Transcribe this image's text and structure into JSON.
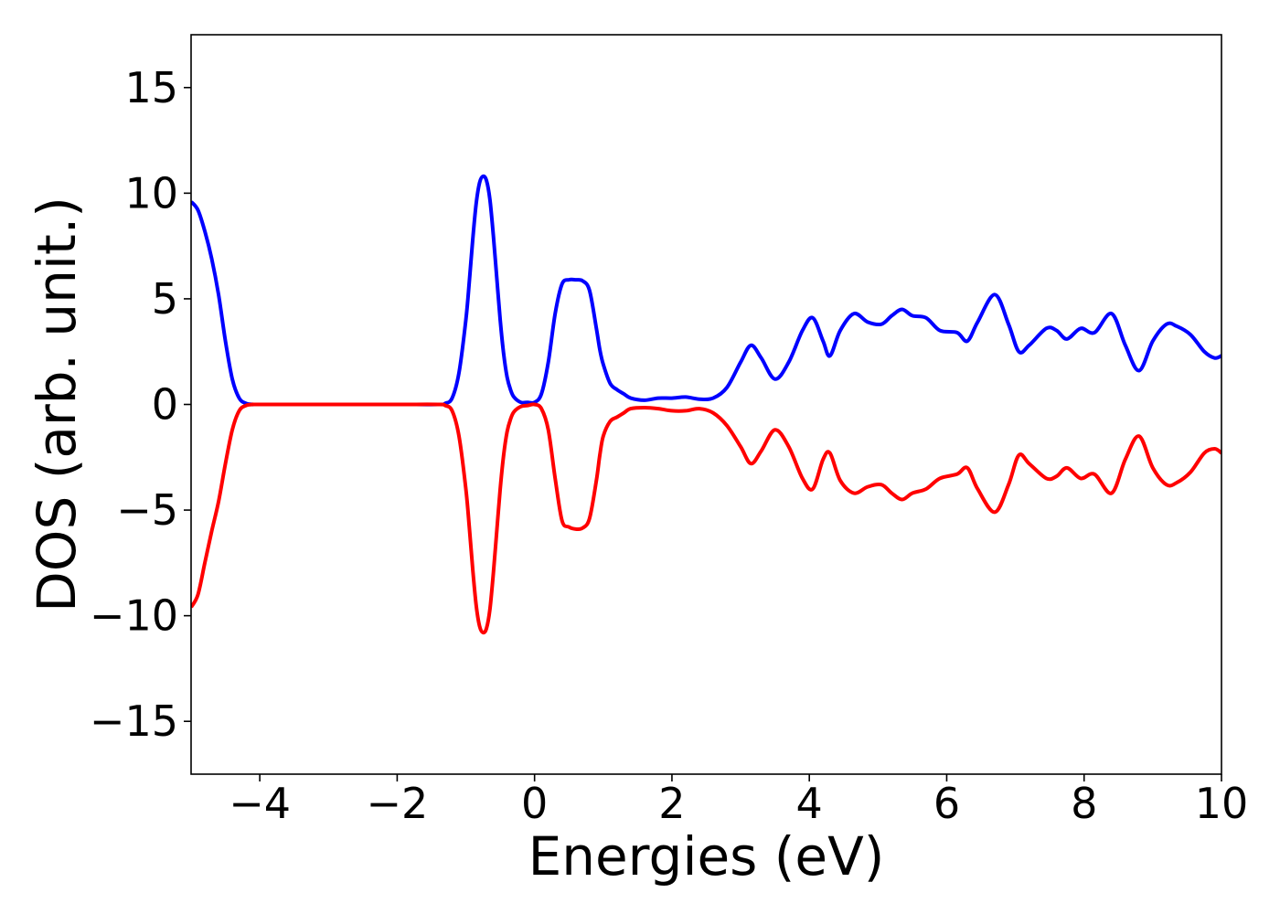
{
  "chart_data": {
    "type": "line",
    "title": "",
    "xlabel": "Energies (eV)",
    "ylabel": "DOS (arb. unit.)",
    "xlim": [
      -5,
      10
    ],
    "ylim": [
      -17.5,
      17.5
    ],
    "xticks": [
      -4,
      -2,
      0,
      2,
      4,
      6,
      8,
      10
    ],
    "xtick_labels": [
      "−4",
      "−2",
      "0",
      "2",
      "4",
      "6",
      "8",
      "10"
    ],
    "yticks": [
      15,
      10,
      5,
      0,
      -5,
      -10,
      -15
    ],
    "ytick_labels": [
      "15",
      "10",
      "5",
      "0",
      "−5",
      "−10",
      "−15"
    ],
    "grid": false,
    "legend": "none",
    "series": [
      {
        "color": "#0000ff",
        "x": [
          -5.0,
          -4.9,
          -4.8,
          -4.7,
          -4.6,
          -4.5,
          -4.4,
          -4.3,
          -4.2,
          -4.1,
          -4.0,
          -3.0,
          -2.0,
          -1.4,
          -1.3,
          -1.2,
          -1.1,
          -1.0,
          -0.95,
          -0.9,
          -0.85,
          -0.8,
          -0.75,
          -0.7,
          -0.65,
          -0.6,
          -0.55,
          -0.5,
          -0.45,
          -0.4,
          -0.35,
          -0.3,
          -0.2,
          -0.1,
          0.0,
          0.1,
          0.2,
          0.3,
          0.4,
          0.5,
          0.6,
          0.7,
          0.8,
          0.9,
          0.95,
          1.0,
          1.1,
          1.2,
          1.3,
          1.4,
          1.6,
          1.8,
          2.0,
          2.2,
          2.4,
          2.6,
          2.8,
          3.0,
          3.15,
          3.3,
          3.5,
          3.7,
          3.9,
          4.05,
          4.2,
          4.3,
          4.45,
          4.65,
          4.85,
          5.05,
          5.2,
          5.35,
          5.5,
          5.7,
          5.9,
          6.15,
          6.3,
          6.45,
          6.7,
          6.9,
          7.05,
          7.2,
          7.45,
          7.6,
          7.75,
          7.95,
          8.15,
          8.4,
          8.6,
          8.8,
          9.0,
          9.2,
          9.35,
          9.55,
          9.75,
          9.9,
          10.0
        ],
        "y": [
          9.6,
          9.2,
          8.2,
          6.9,
          5.2,
          3.0,
          1.2,
          0.3,
          0.05,
          0.0,
          0.0,
          0.0,
          0.0,
          0.0,
          0.05,
          0.3,
          1.5,
          4.0,
          5.8,
          7.8,
          9.5,
          10.5,
          10.8,
          10.6,
          9.7,
          8.0,
          6.0,
          4.0,
          2.4,
          1.3,
          0.7,
          0.35,
          0.1,
          0.1,
          0.1,
          0.5,
          2.0,
          4.3,
          5.7,
          5.9,
          5.9,
          5.85,
          5.4,
          3.6,
          2.6,
          1.9,
          1.0,
          0.7,
          0.5,
          0.3,
          0.2,
          0.3,
          0.3,
          0.35,
          0.25,
          0.3,
          0.8,
          2.0,
          2.8,
          2.2,
          1.2,
          2.0,
          3.5,
          4.1,
          3.0,
          2.3,
          3.5,
          4.3,
          3.9,
          3.8,
          4.2,
          4.5,
          4.2,
          4.1,
          3.5,
          3.4,
          3.0,
          3.9,
          5.2,
          3.8,
          2.5,
          2.8,
          3.6,
          3.5,
          3.1,
          3.6,
          3.4,
          4.3,
          2.8,
          1.6,
          3.0,
          3.8,
          3.7,
          3.3,
          2.5,
          2.2,
          2.3
        ]
      },
      {
        "color": "#ff0000",
        "x": [
          -5.0,
          -4.9,
          -4.8,
          -4.7,
          -4.6,
          -4.5,
          -4.4,
          -4.3,
          -4.2,
          -4.1,
          -4.0,
          -3.0,
          -2.0,
          -1.4,
          -1.3,
          -1.2,
          -1.1,
          -1.0,
          -0.95,
          -0.9,
          -0.85,
          -0.8,
          -0.75,
          -0.7,
          -0.65,
          -0.6,
          -0.55,
          -0.5,
          -0.45,
          -0.4,
          -0.35,
          -0.3,
          -0.2,
          -0.1,
          0.0,
          0.1,
          0.2,
          0.3,
          0.4,
          0.5,
          0.6,
          0.7,
          0.8,
          0.9,
          0.95,
          1.0,
          1.1,
          1.2,
          1.3,
          1.4,
          1.6,
          1.8,
          2.0,
          2.2,
          2.4,
          2.6,
          2.8,
          3.0,
          3.15,
          3.3,
          3.5,
          3.7,
          3.9,
          4.05,
          4.2,
          4.3,
          4.45,
          4.65,
          4.85,
          5.05,
          5.2,
          5.35,
          5.5,
          5.7,
          5.9,
          6.15,
          6.3,
          6.45,
          6.7,
          6.9,
          7.05,
          7.2,
          7.45,
          7.6,
          7.75,
          7.95,
          8.15,
          8.4,
          8.6,
          8.8,
          9.0,
          9.2,
          9.35,
          9.55,
          9.75,
          9.9,
          10.0
        ],
        "y": [
          -9.6,
          -9.0,
          -7.5,
          -6.0,
          -4.6,
          -2.8,
          -1.2,
          -0.3,
          -0.05,
          0.0,
          0.0,
          0.0,
          0.0,
          0.0,
          -0.05,
          -0.3,
          -1.5,
          -4.0,
          -5.8,
          -7.8,
          -9.5,
          -10.5,
          -10.8,
          -10.6,
          -9.7,
          -8.0,
          -6.0,
          -4.0,
          -2.4,
          -1.3,
          -0.7,
          -0.35,
          -0.1,
          -0.05,
          0.0,
          -0.2,
          -1.2,
          -3.5,
          -5.5,
          -5.8,
          -5.9,
          -5.85,
          -5.4,
          -3.6,
          -2.4,
          -1.5,
          -0.8,
          -0.6,
          -0.4,
          -0.2,
          -0.15,
          -0.2,
          -0.3,
          -0.3,
          -0.2,
          -0.4,
          -1.0,
          -2.0,
          -2.8,
          -2.2,
          -1.2,
          -2.0,
          -3.5,
          -4.0,
          -2.6,
          -2.3,
          -3.6,
          -4.2,
          -3.9,
          -3.8,
          -4.2,
          -4.5,
          -4.2,
          -4.0,
          -3.5,
          -3.3,
          -3.0,
          -4.0,
          -5.1,
          -3.8,
          -2.4,
          -2.8,
          -3.5,
          -3.4,
          -3.0,
          -3.5,
          -3.3,
          -4.2,
          -2.6,
          -1.5,
          -3.0,
          -3.8,
          -3.7,
          -3.2,
          -2.3,
          -2.1,
          -2.3
        ]
      }
    ]
  }
}
